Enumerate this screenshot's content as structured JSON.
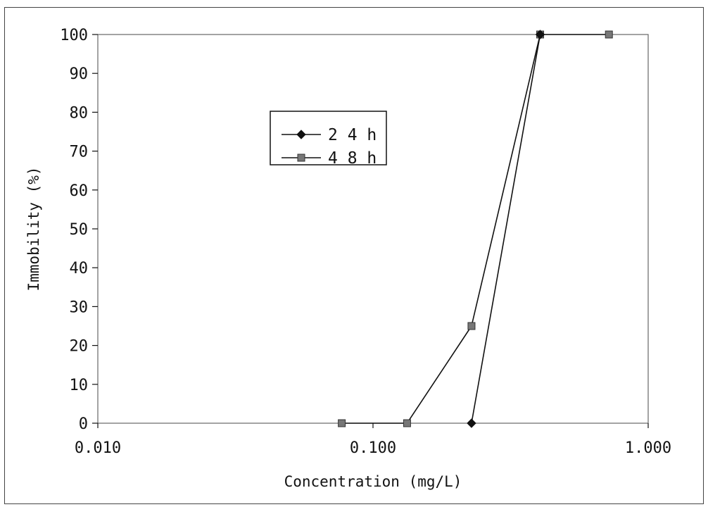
{
  "chart_data": {
    "type": "line",
    "x_scale": "log",
    "xlim": [
      0.01,
      1.0
    ],
    "ylim": [
      0,
      100
    ],
    "x_ticks": [
      0.01,
      0.1,
      1.0
    ],
    "x_tick_labels": [
      "0.010",
      "0.100",
      "1.000"
    ],
    "y_ticks": [
      0,
      10,
      20,
      30,
      40,
      50,
      60,
      70,
      80,
      90,
      100
    ],
    "y_tick_labels": [
      "0",
      "10",
      "20",
      "30",
      "40",
      "50",
      "60",
      "70",
      "80",
      "90",
      "100"
    ],
    "xlabel": "Concentration (mg/L)",
    "ylabel": "Immobility (%)",
    "grid": false,
    "legend_position": "top-left",
    "series": [
      {
        "name": "2 4 h",
        "marker": "diamond",
        "color": "#111111",
        "x": [
          0.228,
          0.405
        ],
        "y": [
          0,
          100
        ]
      },
      {
        "name": "4 8 h",
        "marker": "square",
        "color": "#777777",
        "x": [
          0.077,
          0.133,
          0.228,
          0.405,
          0.72
        ],
        "y": [
          0,
          0,
          25,
          100,
          100
        ]
      }
    ]
  }
}
